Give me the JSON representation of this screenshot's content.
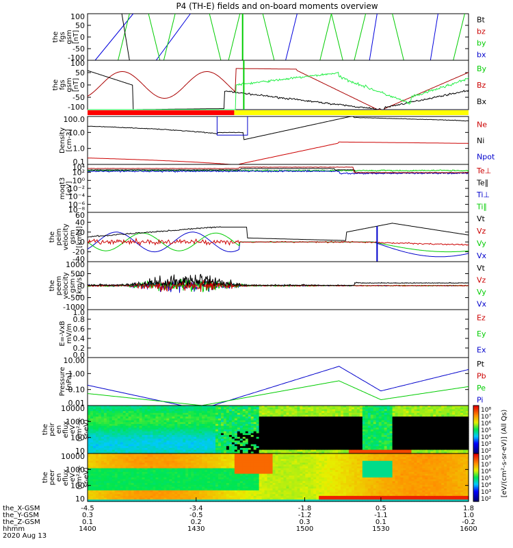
{
  "title": "P4 (TH-E) fields and on-board moments overview",
  "chart_data": [
    {
      "type": "line",
      "id": "fgs-gsm-bxyz",
      "ylabel": [
        "the",
        "fgs",
        "gsm",
        "[nT]"
      ],
      "ylim": [
        -100,
        100
      ],
      "ticks": [
        "100",
        "50",
        "0",
        "-50",
        "-100"
      ],
      "legend": [
        {
          "label": "Bt",
          "color": "#000000"
        },
        {
          "label": "bz",
          "color": "#cc0000"
        },
        {
          "label": "by",
          "color": "#00cc00"
        },
        {
          "label": "bx",
          "color": "#0000cc"
        }
      ]
    },
    {
      "type": "line",
      "id": "fgs-gsm-b-zoom",
      "ylabel": [
        "the",
        "fgs",
        "gsm",
        "[nT]"
      ],
      "ylim": [
        -120,
        120
      ],
      "ticks": [
        "100",
        "50",
        "0",
        "-50",
        "-100"
      ],
      "legend": [
        {
          "label": "By",
          "color": "#00cc00"
        },
        {
          "label": "Bz",
          "color": "#cc0000"
        },
        {
          "label": "Bx",
          "color": "#000000"
        }
      ]
    },
    {
      "type": "bar",
      "id": "mode-bar",
      "segments": [
        {
          "from": 0,
          "to": 0.385,
          "color": "#ff0000"
        },
        {
          "from": 0.385,
          "to": 1,
          "color": "#ffff00"
        }
      ]
    },
    {
      "type": "line",
      "id": "density",
      "ylabel": [
        "Density",
        "[cm-3]"
      ],
      "scale": "log",
      "ticks": [
        "100.0",
        "10.0",
        "1.0",
        "0.1"
      ],
      "legend": [
        {
          "label": "Ne",
          "color": "#cc0000"
        },
        {
          "label": "Ni",
          "color": "#000000"
        },
        {
          "label": "Npot",
          "color": "#0000cc"
        }
      ]
    },
    {
      "type": "line",
      "id": "temperature",
      "ylabel": [
        "moqt3",
        "[eV]"
      ],
      "scale": "log",
      "ticks": [
        "10⁴",
        "10²",
        "10⁰",
        "10⁻²",
        "10⁻⁴",
        "10⁻⁶",
        "10⁻⁸"
      ],
      "legend": [
        {
          "label": "Te⊥",
          "color": "#cc0000"
        },
        {
          "label": "Te∥",
          "color": "#000000"
        },
        {
          "label": "Ti⊥",
          "color": "#0000cc"
        },
        {
          "label": "Ti∥",
          "color": "#00cc00"
        }
      ]
    },
    {
      "type": "line",
      "id": "ion-velocity",
      "ylabel": [
        "the",
        "peim",
        "velocity",
        "gsm",
        "[km/s]"
      ],
      "ylim": [
        -40,
        60
      ],
      "ticks": [
        "60",
        "40",
        "20",
        "0",
        "-20",
        "-40"
      ],
      "legend": [
        {
          "label": "Vt",
          "color": "#000000"
        },
        {
          "label": "Vz",
          "color": "#cc0000"
        },
        {
          "label": "Vy",
          "color": "#00cc00"
        },
        {
          "label": "Vx",
          "color": "#0000cc"
        }
      ]
    },
    {
      "type": "line",
      "id": "electron-velocity",
      "ylabel": [
        "the",
        "peem",
        "velocity",
        "gsm",
        "[km/s]"
      ],
      "ylim": [
        -1000,
        1000
      ],
      "ticks": [
        "1000",
        "500",
        "0",
        "-500",
        "-1000"
      ],
      "legend": [
        {
          "label": "Vt",
          "color": "#000000"
        },
        {
          "label": "Vz",
          "color": "#cc0000"
        },
        {
          "label": "Vy",
          "color": "#00cc00"
        },
        {
          "label": "Vx",
          "color": "#0000cc"
        }
      ]
    },
    {
      "type": "line",
      "id": "e-field",
      "ylabel": [
        "E=-VxB",
        "mV/m"
      ],
      "ylim": [
        0,
        1
      ],
      "ticks": [
        "1.0",
        "0.8",
        "0.6",
        "0.4",
        "0.2",
        "0.0"
      ],
      "legend": [
        {
          "label": "Ez",
          "color": "#cc0000"
        },
        {
          "label": "Ey",
          "color": "#00cc00"
        },
        {
          "label": "Ex",
          "color": "#0000cc"
        }
      ]
    },
    {
      "type": "line",
      "id": "pressure",
      "ylabel": [
        "Pressure",
        "[nPa]"
      ],
      "scale": "log",
      "ticks": [
        "10.00",
        "1.00",
        "0.10",
        "0.01"
      ],
      "legend": [
        {
          "label": "Pt",
          "color": "#000000"
        },
        {
          "label": "Pb",
          "color": "#cc0000"
        },
        {
          "label": "Pe",
          "color": "#00cc00"
        },
        {
          "label": "Pi",
          "color": "#0000cc"
        }
      ]
    },
    {
      "type": "heatmap",
      "id": "ion-eflux",
      "ylabel": [
        "the",
        "peir",
        "en",
        "eflux",
        "eV",
        "(cm²-s-",
        "sr-eV)"
      ],
      "ticks": [
        "10000",
        "1000",
        "100",
        "10"
      ]
    },
    {
      "type": "heatmap",
      "id": "electron-eflux",
      "ylabel": [
        "the",
        "peer",
        "en",
        "eflux",
        "eV",
        "(cm²-s-",
        "sr-eV)"
      ],
      "ticks": [
        "10000",
        "1000",
        "100",
        "10"
      ]
    }
  ],
  "colorbar": {
    "label": "[eV/(cm²-s-sr-eV)] (All Qs)",
    "ion_ticks": [
      "10⁸",
      "10⁷",
      "10⁶",
      "10⁵",
      "10⁴",
      "10³",
      "10²"
    ],
    "electron_ticks": [
      "10⁸",
      "10⁷",
      "10⁶",
      "10⁵",
      "10⁴",
      "10³",
      "10²"
    ]
  },
  "x_axis": {
    "rows": [
      {
        "label": "the_X-GSM",
        "values": [
          "-4.5",
          "-3.4",
          "-1.8",
          "0.5",
          "1.8"
        ]
      },
      {
        "label": "the_Y-GSM",
        "values": [
          "0.3",
          "-0.5",
          "-1.2",
          "-1.1",
          "1.0"
        ]
      },
      {
        "label": "the_Z-GSM",
        "values": [
          "0.1",
          "0.2",
          "0.3",
          "0.1",
          "-0.2"
        ]
      },
      {
        "label": "hhmm",
        "values": [
          "1400",
          "1430",
          "1500",
          "1530",
          "1600"
        ]
      }
    ],
    "date": "2020 Aug 13"
  }
}
